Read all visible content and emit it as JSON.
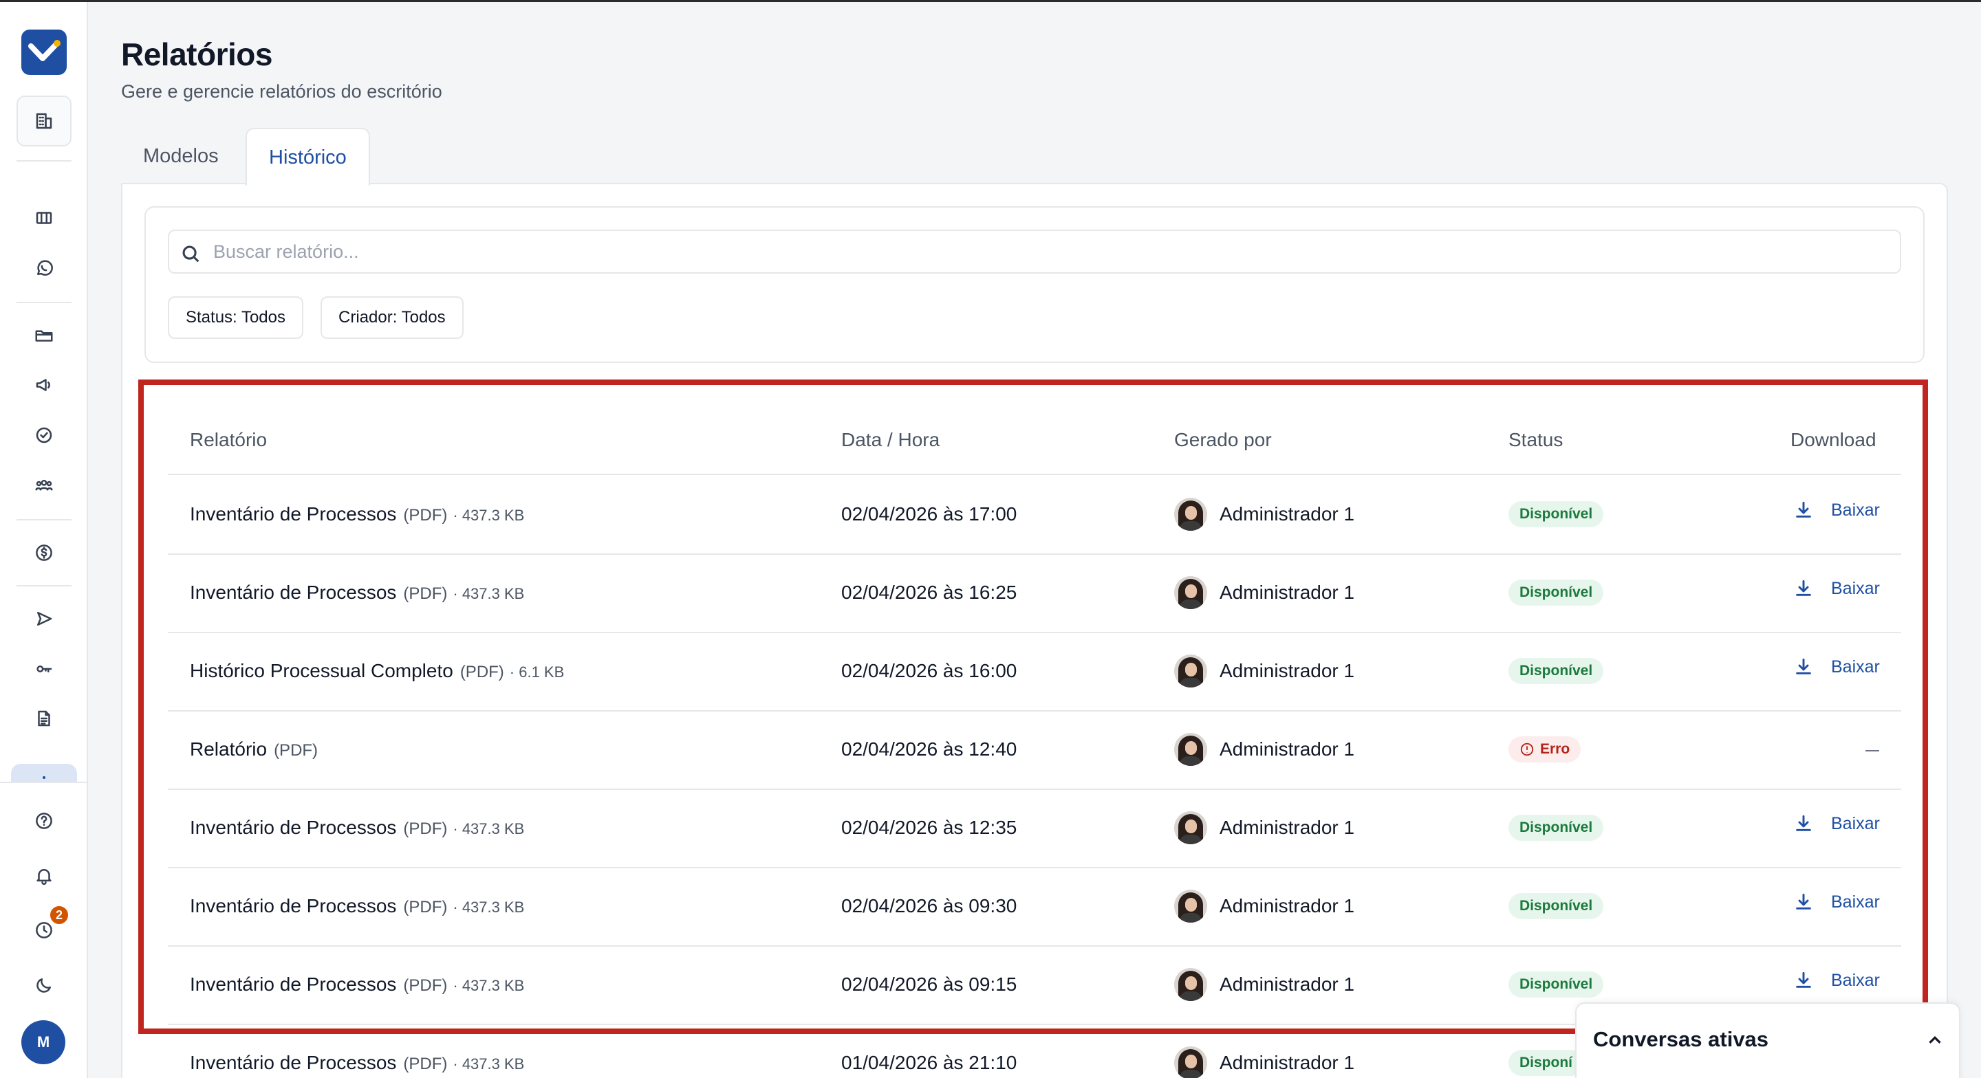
{
  "page": {
    "title": "Relatórios",
    "subtitle": "Gere e gerencie relatórios do escritório"
  },
  "tabs": [
    {
      "label": "Modelos",
      "active": false
    },
    {
      "label": "Histórico",
      "active": true
    }
  ],
  "search": {
    "placeholder": "Buscar relatório...",
    "value": ""
  },
  "filters": {
    "status_label": "Status: Todos",
    "creator_label": "Criador: Todos"
  },
  "table": {
    "headers": {
      "report": "Relatório",
      "datetime": "Data / Hora",
      "generated_by": "Gerado por",
      "status": "Status",
      "download": "Download"
    },
    "rows": [
      {
        "name": "Inventário de Processos",
        "format": "(PDF)",
        "size": "· 437.3 KB",
        "datetime": "02/04/2026 às 17:00",
        "user": "Administrador 1",
        "status": "Disponível",
        "download": "Baixar"
      },
      {
        "name": "Inventário de Processos",
        "format": "(PDF)",
        "size": "· 437.3 KB",
        "datetime": "02/04/2026 às 16:25",
        "user": "Administrador 1",
        "status": "Disponível",
        "download": "Baixar"
      },
      {
        "name": "Histórico Processual Completo",
        "format": "(PDF)",
        "size": "· 6.1 KB",
        "datetime": "02/04/2026 às 16:00",
        "user": "Administrador 1",
        "status": "Disponível",
        "download": "Baixar"
      },
      {
        "name": "Relatório",
        "format": "(PDF)",
        "size": "",
        "datetime": "02/04/2026 às 12:40",
        "user": "Administrador 1",
        "status": "Erro",
        "download": "—"
      },
      {
        "name": "Inventário de Processos",
        "format": "(PDF)",
        "size": "· 437.3 KB",
        "datetime": "02/04/2026 às 12:35",
        "user": "Administrador 1",
        "status": "Disponível",
        "download": "Baixar"
      },
      {
        "name": "Inventário de Processos",
        "format": "(PDF)",
        "size": "· 437.3 KB",
        "datetime": "02/04/2026 às 09:30",
        "user": "Administrador 1",
        "status": "Disponível",
        "download": "Baixar"
      },
      {
        "name": "Inventário de Processos",
        "format": "(PDF)",
        "size": "· 437.3 KB",
        "datetime": "02/04/2026 às 09:15",
        "user": "Administrador 1",
        "status": "Disponível",
        "download": "Baixar"
      },
      {
        "name": "Inventário de Processos",
        "format": "(PDF)",
        "size": "· 437.3 KB",
        "datetime": "01/04/2026 às 21:10",
        "user": "Administrador 1",
        "status": "Disponí",
        "download": ""
      }
    ]
  },
  "sidebar": {
    "notification_count": "2",
    "user_initial": "M",
    "icons": [
      "building-icon",
      "kanban-icon",
      "whatsapp-icon",
      "folder-icon",
      "megaphone-icon",
      "check-circle-icon",
      "team-icon",
      "dollar-icon",
      "send-icon",
      "key-icon",
      "document-icon",
      "help-icon",
      "bell-icon",
      "clock-icon",
      "moon-icon"
    ]
  },
  "chat": {
    "title": "Conversas ativas"
  },
  "colors": {
    "accent": "#1e4fa3",
    "available_bg": "#e7f6ec",
    "available_text": "#1b7a3d",
    "error_bg": "#fdecec",
    "error_text": "#b42318",
    "highlight": "#c0261f"
  }
}
